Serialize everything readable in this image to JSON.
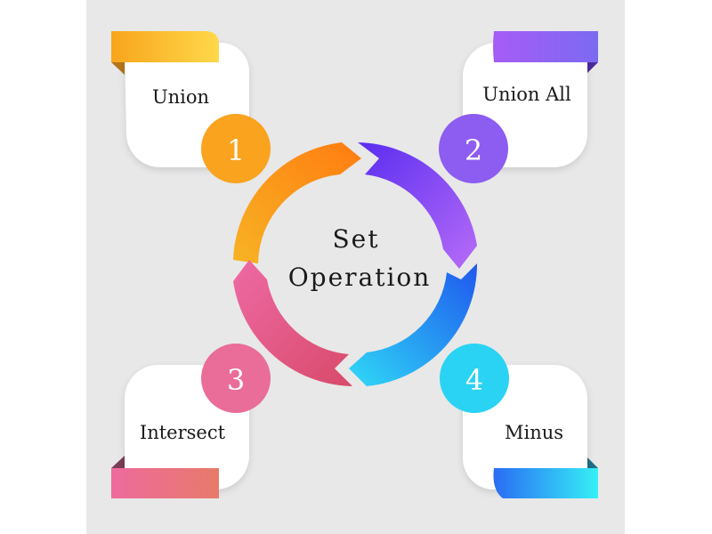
{
  "center": {
    "line1": "Set",
    "line2": "Operation"
  },
  "items": [
    {
      "number": "1",
      "label": "Union"
    },
    {
      "number": "2",
      "label": "Union All"
    },
    {
      "number": "3",
      "label": "Intersect"
    },
    {
      "number": "4",
      "label": "Minus"
    }
  ],
  "colors": {
    "orange": "#f9a31e",
    "purple": "#8d5cf0",
    "pink": "#e96d98",
    "cyan": "#2ad3f3",
    "blue": "#1f77f0",
    "background": "#e8e8e8"
  }
}
